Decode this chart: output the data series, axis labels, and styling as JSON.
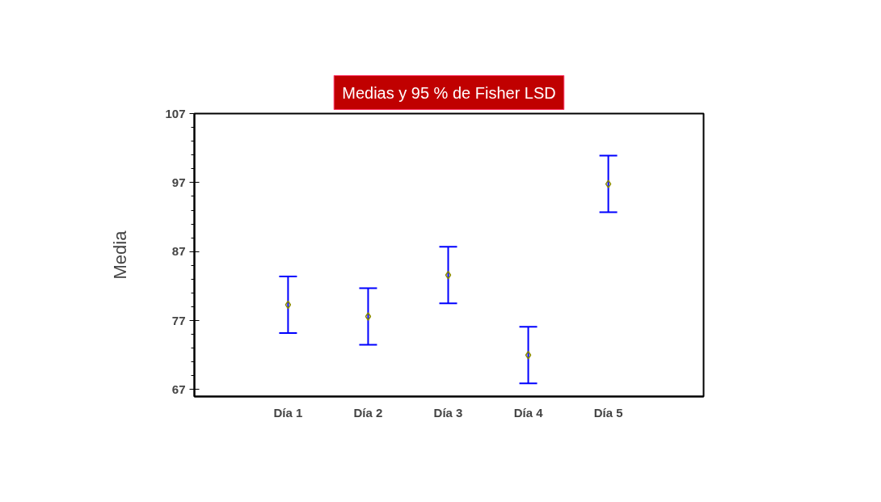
{
  "chart_data": {
    "type": "scatter",
    "title": "Medias y 95 % de Fisher LSD",
    "ylabel": "Media",
    "categories": [
      "Día 1",
      "Día 2",
      "Día 3",
      "Día 4",
      "Día 5"
    ],
    "values": [
      79.3,
      77.6,
      83.6,
      72.0,
      96.8
    ],
    "errors": [
      4.1,
      4.1,
      4.1,
      4.1,
      4.1
    ],
    "color": "#8b8b00",
    "marker": "diamond",
    "ylim": [
      66,
      107
    ],
    "yticks": [
      67,
      77,
      87,
      97,
      107
    ],
    "grid": false
  }
}
